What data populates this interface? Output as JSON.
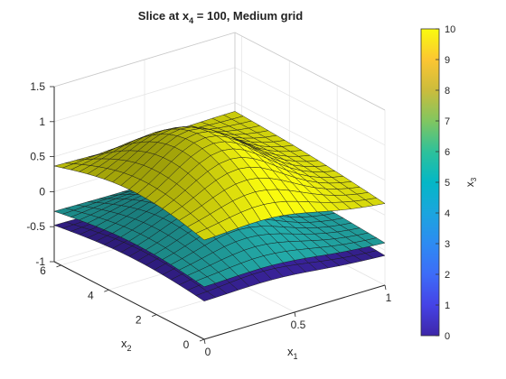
{
  "chart_data": {
    "type": "surface",
    "title": {
      "prefix": "Slice  at  x",
      "sub": "4",
      "suffix": "  =  100,  Medium  grid"
    },
    "xlabel": {
      "base": "x",
      "sub": "1"
    },
    "ylabel": {
      "base": "x",
      "sub": "2"
    },
    "zlabel": {
      "base": "x",
      "sub": "3"
    },
    "xlim": [
      0,
      1
    ],
    "ylim": [
      0,
      6.2832
    ],
    "zlim": [
      -1,
      1.5
    ],
    "xticks": [
      "0",
      "0.5",
      "1"
    ],
    "yticks": [
      "0",
      "2",
      "4",
      "6"
    ],
    "zticks": [
      "-1",
      "-0.5",
      "0",
      "0.5",
      "1",
      "1.5"
    ],
    "grid": true,
    "colormap": "parula",
    "colorbar": {
      "label": {
        "base": "x",
        "sub": "3"
      },
      "range": [
        0,
        10
      ],
      "ticks": [
        "0",
        "1",
        "2",
        "3",
        "4",
        "5",
        "6",
        "7",
        "8",
        "9",
        "10"
      ],
      "placement": "right"
    },
    "series": [
      {
        "x3": 0,
        "color": "#3e26a8",
        "z_min": -1.0,
        "z_max": 0.05
      },
      {
        "x3": 5,
        "color": "#26b8b6",
        "z_min": -0.9,
        "z_max": 0.35
      },
      {
        "x3": 10,
        "color": "#f9fb0e",
        "z_min": -0.7,
        "z_max": 1.45
      }
    ]
  }
}
